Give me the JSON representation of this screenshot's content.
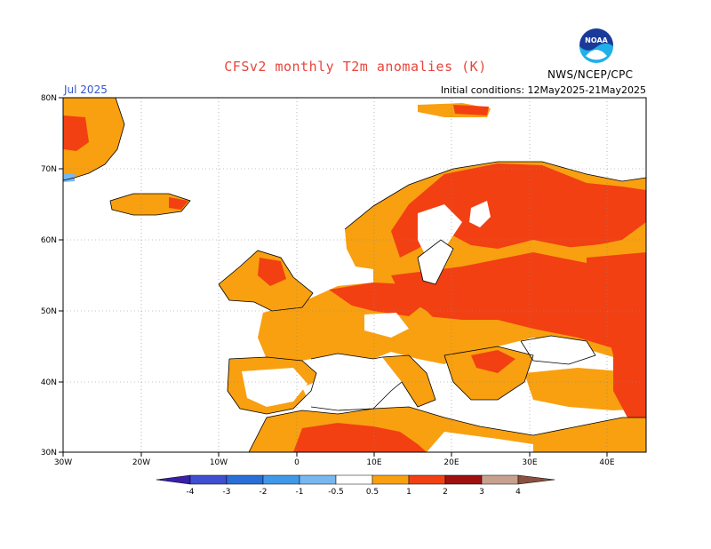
{
  "title": "CFSv2 monthly T2m anomalies (K)",
  "month_label": "Jul 2025",
  "initial_conditions": "Initial conditions: 12May2025-21May2025",
  "agency": "NWS/NCEP/CPC",
  "logo_text": "NOAA",
  "lat_labels": [
    "80N",
    "70N",
    "60N",
    "50N",
    "40N",
    "30N"
  ],
  "lon_labels": [
    "30W",
    "20W",
    "10W",
    "0",
    "10E",
    "20E",
    "30E",
    "40E"
  ],
  "colorbar": {
    "labels": [
      "-4",
      "-3",
      "-2",
      "-1",
      "-0.5",
      "0.5",
      "1",
      "2",
      "3",
      "4"
    ],
    "colors": [
      "#3a1fa8",
      "#3f4fd0",
      "#2a6fd8",
      "#3f98e8",
      "#78b8f0",
      "#ffffff",
      "#f8a010",
      "#f24012",
      "#a01010",
      "#c8a090",
      "#8a5040"
    ]
  },
  "anomaly_colors": {
    "weak": "#f8a010",
    "moderate": "#f24012",
    "strong": "#a01010",
    "cool": "#78b8f0",
    "coast": "#000000"
  }
}
